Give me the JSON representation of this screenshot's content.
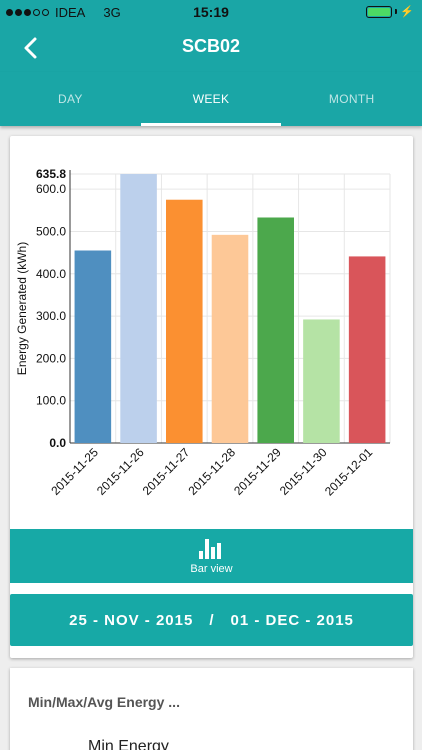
{
  "status_bar": {
    "carrier": "IDEA",
    "network": "3G",
    "time": "15:19",
    "battery_level": 1.0
  },
  "nav": {
    "title": "SCB02",
    "back_icon": "chevron-left-icon"
  },
  "tabs": [
    {
      "label": "DAY",
      "active": false
    },
    {
      "label": "WEEK",
      "active": true
    },
    {
      "label": "MONTH",
      "active": false
    }
  ],
  "chart_data": {
    "type": "bar",
    "categories": [
      "2015-11-25",
      "2015-11-26",
      "2015-11-27",
      "2015-11-28",
      "2015-11-29",
      "2015-11-30",
      "2015-12-01"
    ],
    "values": [
      455,
      635.8,
      575,
      492,
      533,
      292,
      441
    ],
    "colors": [
      "#4f8fc0",
      "#bcd0ec",
      "#fb9031",
      "#fdc897",
      "#4ca84c",
      "#b5e3a5",
      "#d9555a"
    ],
    "ylabel": "Energy Generated (kWh)",
    "ylim": [
      0,
      635.8
    ],
    "yticks": [
      "0.0",
      "100.0",
      "200.0",
      "300.0",
      "400.0",
      "500.0",
      "600.0"
    ],
    "ymax_label": "635.8",
    "grid": true
  },
  "bar_view": {
    "label": "Bar view",
    "icon": "bar-chart-icon"
  },
  "date_range": {
    "start": "25 - NOV - 2015",
    "separator": "/",
    "end": "01 - DEC - 2015"
  },
  "summary": {
    "title": "Min/Max/Avg Energy ...",
    "first_item": "Min Energy"
  }
}
